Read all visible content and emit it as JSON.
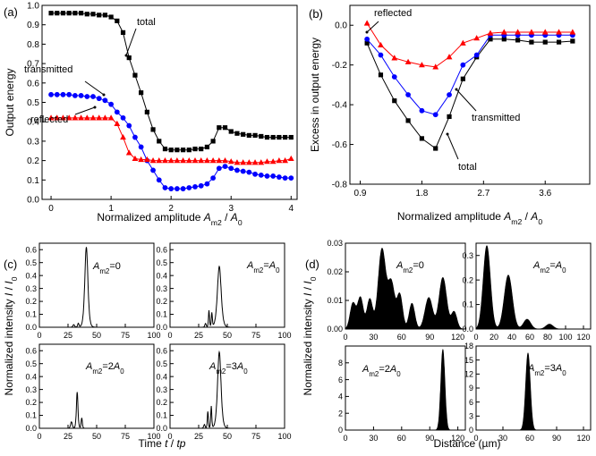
{
  "chart_data": [
    {
      "panel": "a",
      "type": "line",
      "panel_label": "(a)",
      "ylabel": "Output energy",
      "xlabel_parts": [
        "Normalized amplitude ",
        "A",
        "m2",
        " / ",
        "A",
        "0"
      ],
      "xlim": [
        -0.15,
        4.1
      ],
      "ylim": [
        0.0,
        1.0
      ],
      "xticks": [
        0,
        1,
        2,
        3,
        4
      ],
      "yticks": [
        0.0,
        0.1,
        0.2,
        0.3,
        0.4,
        0.5,
        0.6,
        0.7,
        0.8,
        0.9,
        1.0
      ],
      "series": [
        {
          "name": "total",
          "color": "#000000",
          "marker": "square",
          "x": [
            0,
            0.1,
            0.2,
            0.3,
            0.4,
            0.5,
            0.6,
            0.7,
            0.8,
            0.9,
            1.0,
            1.1,
            1.2,
            1.3,
            1.4,
            1.5,
            1.6,
            1.7,
            1.8,
            1.9,
            2.0,
            2.1,
            2.2,
            2.3,
            2.4,
            2.5,
            2.6,
            2.7,
            2.8,
            2.9,
            3.0,
            3.1,
            3.2,
            3.3,
            3.4,
            3.5,
            3.6,
            3.7,
            3.8,
            3.9,
            4.0
          ],
          "y": [
            0.96,
            0.96,
            0.96,
            0.96,
            0.96,
            0.96,
            0.955,
            0.955,
            0.95,
            0.95,
            0.94,
            0.92,
            0.86,
            0.73,
            0.64,
            0.55,
            0.45,
            0.36,
            0.3,
            0.26,
            0.255,
            0.255,
            0.255,
            0.255,
            0.26,
            0.26,
            0.27,
            0.3,
            0.37,
            0.37,
            0.35,
            0.34,
            0.335,
            0.33,
            0.33,
            0.325,
            0.32,
            0.32,
            0.32,
            0.32,
            0.32
          ]
        },
        {
          "name": "transmitted",
          "color": "#0000ff",
          "marker": "circle",
          "x": [
            0,
            0.1,
            0.2,
            0.3,
            0.4,
            0.5,
            0.6,
            0.7,
            0.8,
            0.9,
            1.0,
            1.1,
            1.2,
            1.3,
            1.4,
            1.5,
            1.6,
            1.7,
            1.8,
            1.9,
            2.0,
            2.1,
            2.2,
            2.3,
            2.4,
            2.5,
            2.6,
            2.7,
            2.8,
            2.9,
            3.0,
            3.1,
            3.2,
            3.3,
            3.4,
            3.5,
            3.6,
            3.7,
            3.8,
            3.9,
            4.0
          ],
          "y": [
            0.54,
            0.54,
            0.54,
            0.54,
            0.535,
            0.535,
            0.53,
            0.53,
            0.52,
            0.51,
            0.49,
            0.45,
            0.42,
            0.38,
            0.32,
            0.27,
            0.2,
            0.15,
            0.1,
            0.06,
            0.055,
            0.055,
            0.055,
            0.06,
            0.065,
            0.07,
            0.08,
            0.11,
            0.16,
            0.17,
            0.16,
            0.15,
            0.145,
            0.14,
            0.13,
            0.125,
            0.12,
            0.12,
            0.115,
            0.11,
            0.11
          ]
        },
        {
          "name": "reflected",
          "color": "#ff0000",
          "marker": "triangle",
          "x": [
            0,
            0.1,
            0.2,
            0.3,
            0.4,
            0.5,
            0.6,
            0.7,
            0.8,
            0.9,
            1.0,
            1.1,
            1.2,
            1.3,
            1.4,
            1.5,
            1.6,
            1.7,
            1.8,
            1.9,
            2.0,
            2.1,
            2.2,
            2.3,
            2.4,
            2.5,
            2.6,
            2.7,
            2.8,
            2.9,
            3.0,
            3.1,
            3.2,
            3.3,
            3.4,
            3.5,
            3.6,
            3.7,
            3.8,
            3.9,
            4.0
          ],
          "y": [
            0.42,
            0.42,
            0.42,
            0.42,
            0.42,
            0.42,
            0.42,
            0.42,
            0.42,
            0.42,
            0.42,
            0.39,
            0.32,
            0.24,
            0.21,
            0.205,
            0.205,
            0.2,
            0.2,
            0.2,
            0.2,
            0.2,
            0.2,
            0.2,
            0.2,
            0.2,
            0.2,
            0.2,
            0.2,
            0.2,
            0.195,
            0.19,
            0.19,
            0.19,
            0.19,
            0.19,
            0.195,
            0.195,
            0.2,
            0.2,
            0.21
          ]
        }
      ],
      "annotations": [
        "total",
        "transmitted",
        "reflected"
      ]
    },
    {
      "panel": "b",
      "type": "line",
      "panel_label": "(b)",
      "ylabel": "Excess in output energy",
      "xlabel_parts": [
        "Normalized amplitude ",
        "A",
        "m2",
        " / ",
        "A",
        "0"
      ],
      "xlim": [
        0.75,
        4.25
      ],
      "ylim": [
        -0.8,
        0.1
      ],
      "xticks": [
        0.9,
        1.8,
        2.7,
        3.6
      ],
      "xtick_labels": [
        "0.9",
        "1.8",
        "2.7",
        "3.6"
      ],
      "yticks": [
        -0.8,
        -0.6,
        -0.4,
        -0.2,
        0.0
      ],
      "ytick_labels": [
        "-0.8",
        "-0.6",
        "-0.4",
        "-0.2",
        "0.0"
      ],
      "series": [
        {
          "name": "total",
          "color": "#000000",
          "marker": "square",
          "x": [
            1.0,
            1.2,
            1.4,
            1.6,
            1.8,
            2.0,
            2.2,
            2.4,
            2.6,
            2.8,
            3.0,
            3.2,
            3.4,
            3.6,
            3.8,
            4.0
          ],
          "y": [
            -0.09,
            -0.25,
            -0.38,
            -0.48,
            -0.57,
            -0.62,
            -0.46,
            -0.27,
            -0.16,
            -0.07,
            -0.07,
            -0.075,
            -0.085,
            -0.085,
            -0.085,
            -0.08
          ]
        },
        {
          "name": "transmitted",
          "color": "#0000ff",
          "marker": "circle",
          "x": [
            1.0,
            1.2,
            1.4,
            1.6,
            1.8,
            2.0,
            2.2,
            2.4,
            2.6,
            2.8,
            3.0,
            3.2,
            3.4,
            3.6,
            3.8,
            4.0
          ],
          "y": [
            -0.07,
            -0.15,
            -0.26,
            -0.35,
            -0.43,
            -0.45,
            -0.35,
            -0.2,
            -0.15,
            -0.05,
            -0.05,
            -0.05,
            -0.05,
            -0.05,
            -0.05,
            -0.05
          ]
        },
        {
          "name": "reflected",
          "color": "#ff0000",
          "marker": "triangle",
          "x": [
            1.0,
            1.2,
            1.4,
            1.6,
            1.8,
            2.0,
            2.2,
            2.4,
            2.6,
            2.8,
            3.0,
            3.2,
            3.4,
            3.6,
            3.8,
            4.0
          ],
          "y": [
            0.01,
            -0.1,
            -0.165,
            -0.185,
            -0.2,
            -0.21,
            -0.16,
            -0.09,
            -0.065,
            -0.04,
            -0.035,
            -0.035,
            -0.035,
            -0.035,
            -0.035,
            -0.035
          ]
        }
      ],
      "annotations": [
        "reflected",
        "transmitted",
        "total"
      ]
    },
    {
      "panel": "c",
      "type": "line",
      "panel_label": "(c)",
      "ylabel_parts": [
        "Normalized intensity ",
        "I",
        " / ",
        "I",
        "0"
      ],
      "xlabel_parts": [
        "Time ",
        "t",
        " / ",
        "t",
        "p"
      ],
      "color": "#000000",
      "subplots": [
        {
          "label_parts": [
            "A",
            "m2",
            "=0"
          ],
          "xlim": [
            0,
            100
          ],
          "ylim": [
            0,
            0.65
          ],
          "xticks": [
            0,
            25,
            50,
            75,
            100
          ],
          "yticks": [
            0.0,
            0.1,
            0.2,
            0.3,
            0.4,
            0.5,
            0.6
          ],
          "show_xticklabels": true,
          "show_yticklabels": true,
          "peaks": [
            {
              "center": 41,
              "height": 0.62,
              "width": 1.8
            },
            {
              "center": 30,
              "height": 0.02,
              "width": 1.0
            },
            {
              "center": 34,
              "height": 0.03,
              "width": 0.8
            }
          ]
        },
        {
          "label_parts": [
            "A",
            "m2",
            "=",
            "A",
            "0"
          ],
          "xlim": [
            0,
            100
          ],
          "ylim": [
            0,
            0.65
          ],
          "xticks": [
            0,
            25,
            50,
            75,
            100
          ],
          "yticks": [
            0.0,
            0.1,
            0.2,
            0.3,
            0.4,
            0.5,
            0.6
          ],
          "show_xticklabels": true,
          "show_yticklabels": true,
          "peaks": [
            {
              "center": 43,
              "height": 0.47,
              "width": 2.2
            },
            {
              "center": 34,
              "height": 0.13,
              "width": 0.6
            },
            {
              "center": 36.5,
              "height": 0.11,
              "width": 0.6
            },
            {
              "center": 31,
              "height": 0.03,
              "width": 0.8
            }
          ]
        },
        {
          "label_parts": [
            "A",
            "m2",
            "=2",
            "A",
            "0"
          ],
          "xlim": [
            0,
            100
          ],
          "ylim": [
            0,
            0.65
          ],
          "xticks": [
            0,
            25,
            50,
            75,
            100
          ],
          "yticks": [
            0.0,
            0.1,
            0.2,
            0.3,
            0.4,
            0.5,
            0.6
          ],
          "show_xticklabels": true,
          "show_yticklabels": true,
          "peaks": [
            {
              "center": 33,
              "height": 0.28,
              "width": 0.9
            },
            {
              "center": 28,
              "height": 0.05,
              "width": 1.0
            },
            {
              "center": 37,
              "height": 0.08,
              "width": 0.7
            }
          ]
        },
        {
          "label_parts": [
            "A",
            "m2",
            "=3",
            "A",
            "0"
          ],
          "xlim": [
            0,
            100
          ],
          "ylim": [
            0,
            0.65
          ],
          "xticks": [
            0,
            25,
            50,
            75,
            100
          ],
          "yticks": [
            0.0,
            0.1,
            0.2,
            0.3,
            0.4,
            0.5,
            0.6
          ],
          "show_xticklabels": true,
          "show_yticklabels": true,
          "peaks": [
            {
              "center": 43,
              "height": 0.59,
              "width": 2.0
            },
            {
              "center": 33,
              "height": 0.13,
              "width": 0.6
            },
            {
              "center": 36,
              "height": 0.17,
              "width": 0.6
            },
            {
              "center": 30,
              "height": 0.03,
              "width": 0.8
            }
          ]
        }
      ]
    },
    {
      "panel": "d",
      "type": "area",
      "panel_label": "(d)",
      "ylabel_parts": [
        "Normalized intensity ",
        "I",
        " / ",
        "I",
        "0"
      ],
      "xlabel": "Distance (µm)",
      "color": "#000000",
      "subplots": [
        {
          "label_parts": [
            "A",
            "m2",
            "=0"
          ],
          "xlim": [
            0,
            128
          ],
          "ylim": [
            0,
            0.03
          ],
          "xticks": [
            0,
            30,
            60,
            90,
            120
          ],
          "yticks": [
            0.0,
            0.01,
            0.02,
            0.03
          ],
          "ytick_labels": [
            "0.00",
            "0.01",
            "0.02",
            "0.03"
          ],
          "show_xticklabels": true,
          "show_yticklabels": true,
          "envelope": [
            {
              "center": 8,
              "height": 0.009,
              "width": 3
            },
            {
              "center": 16,
              "height": 0.011,
              "width": 3
            },
            {
              "center": 26,
              "height": 0.0105,
              "width": 3
            },
            {
              "center": 39,
              "height": 0.028,
              "width": 4
            },
            {
              "center": 49,
              "height": 0.016,
              "width": 3.5
            },
            {
              "center": 58,
              "height": 0.012,
              "width": 3
            },
            {
              "center": 71,
              "height": 0.009,
              "width": 3
            },
            {
              "center": 89,
              "height": 0.011,
              "width": 4
            },
            {
              "center": 104,
              "height": 0.018,
              "width": 4
            },
            {
              "center": 116,
              "height": 0.006,
              "width": 3
            }
          ]
        },
        {
          "label_parts": [
            "A",
            "m2",
            "=",
            "A",
            "0"
          ],
          "xlim": [
            0,
            128
          ],
          "ylim": [
            0,
            0.35
          ],
          "xticks": [
            0,
            20,
            40,
            60,
            80,
            100,
            120
          ],
          "yticks": [
            0.0,
            0.1,
            0.2,
            0.3
          ],
          "show_xticklabels": true,
          "show_yticklabels": true,
          "envelope": [
            {
              "center": 12,
              "height": 0.34,
              "width": 4
            },
            {
              "center": 36,
              "height": 0.22,
              "width": 4.5
            },
            {
              "center": 57,
              "height": 0.04,
              "width": 4
            },
            {
              "center": 82,
              "height": 0.02,
              "width": 4
            }
          ]
        },
        {
          "label_parts": [
            "A",
            "m2",
            "=2",
            "A",
            "0"
          ],
          "xlim": [
            0,
            128
          ],
          "ylim": [
            0,
            10
          ],
          "xticks": [
            0,
            30,
            60,
            90,
            120
          ],
          "yticks": [
            0,
            2,
            4,
            6,
            8
          ],
          "show_xticklabels": true,
          "show_yticklabels": true,
          "envelope": [
            {
              "center": 104,
              "height": 9.6,
              "width": 2.2
            }
          ]
        },
        {
          "label_parts": [
            "A",
            "m2",
            "=3",
            "A",
            "0"
          ],
          "xlim": [
            0,
            128
          ],
          "ylim": [
            0,
            18
          ],
          "xticks": [
            0,
            30,
            60,
            90,
            120
          ],
          "yticks": [
            0,
            3,
            6,
            9,
            12,
            15,
            18
          ],
          "show_xticklabels": true,
          "show_yticklabels": true,
          "envelope": [
            {
              "center": 58,
              "height": 16.5,
              "width": 2.6
            }
          ]
        }
      ]
    }
  ]
}
